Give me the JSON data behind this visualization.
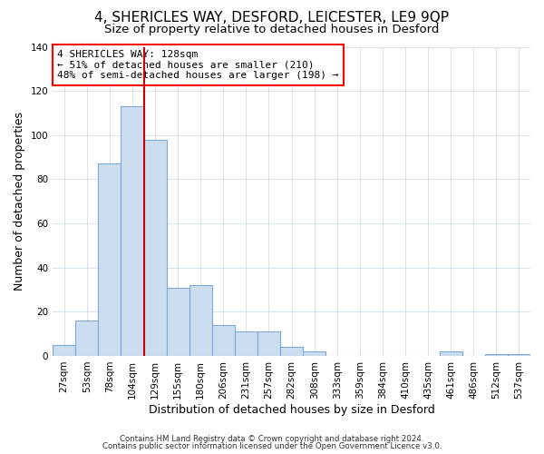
{
  "title": "4, SHERICLES WAY, DESFORD, LEICESTER, LE9 9QP",
  "subtitle": "Size of property relative to detached houses in Desford",
  "xlabel": "Distribution of detached houses by size in Desford",
  "ylabel": "Number of detached properties",
  "bar_labels": [
    "27sqm",
    "53sqm",
    "78sqm",
    "104sqm",
    "129sqm",
    "155sqm",
    "180sqm",
    "206sqm",
    "231sqm",
    "257sqm",
    "282sqm",
    "308sqm",
    "333sqm",
    "359sqm",
    "384sqm",
    "410sqm",
    "435sqm",
    "461sqm",
    "486sqm",
    "512sqm",
    "537sqm"
  ],
  "bar_values": [
    5,
    16,
    87,
    113,
    98,
    31,
    32,
    14,
    11,
    11,
    4,
    2,
    0,
    0,
    0,
    0,
    0,
    2,
    0,
    1,
    1
  ],
  "bar_color": "#ccddf0",
  "bar_edge_color": "#7aabdc",
  "ylim": [
    0,
    140
  ],
  "yticks": [
    0,
    20,
    40,
    60,
    80,
    100,
    120,
    140
  ],
  "vline_x_index": 3.5,
  "vline_color": "#cc0000",
  "annotation_title": "4 SHERICLES WAY: 128sqm",
  "annotation_line1": "← 51% of detached houses are smaller (210)",
  "annotation_line2": "48% of semi-detached houses are larger (198) →",
  "footer1": "Contains HM Land Registry data © Crown copyright and database right 2024.",
  "footer2": "Contains public sector information licensed under the Open Government Licence v3.0.",
  "background_color": "#ffffff",
  "grid_color": "#c8d8e8",
  "title_fontsize": 11,
  "subtitle_fontsize": 9.5,
  "axis_label_fontsize": 9,
  "tick_fontsize": 7.5,
  "annotation_fontsize": 8
}
